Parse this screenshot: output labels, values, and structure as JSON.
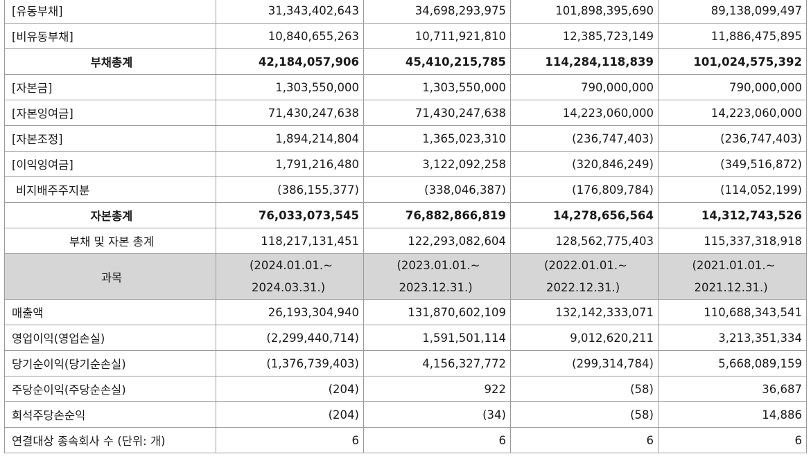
{
  "balance_rows": [
    {
      "label": "[유동부채]",
      "v": [
        "31,343,402,643",
        "34,698,293,975",
        "101,898,395,690",
        "89,138,099,497"
      ]
    },
    {
      "label": "[비유동부채]",
      "v": [
        "10,840,655,263",
        "10,711,921,810",
        "12,385,723,149",
        "11,886,475,895"
      ]
    },
    {
      "label": "부채총계",
      "v": [
        "42,184,057,906",
        "45,410,215,785",
        "114,284,118,839",
        "101,024,575,392"
      ]
    },
    {
      "label": "[자본금]",
      "v": [
        "1,303,550,000",
        "1,303,550,000",
        "790,000,000",
        "790,000,000"
      ]
    },
    {
      "label": "[자본잉여금]",
      "v": [
        "71,430,247,638",
        "71,430,247,638",
        "14,223,060,000",
        "14,223,060,000"
      ]
    },
    {
      "label": "[자본조정]",
      "v": [
        "1,894,214,804",
        "1,365,023,310",
        "(236,747,403)",
        "(236,747,403)"
      ]
    },
    {
      "label": "[이익잉여금]",
      "v": [
        "1,791,216,480",
        "3,122,092,258",
        "(320,846,249)",
        "(349,516,872)"
      ]
    },
    {
      "label": "비지배주주지분",
      "v": [
        "(386,155,377)",
        "(338,046,387)",
        "(176,809,784)",
        "(114,052,199)"
      ]
    },
    {
      "label": "자본총계",
      "v": [
        "76,033,073,545",
        "76,882,866,819",
        "14,278,656,564",
        "14,312,743,526"
      ]
    },
    {
      "label": "부채 및 자본 총계",
      "v": [
        "118,217,131,451",
        "122,293,082,604",
        "128,562,775,403",
        "115,337,318,918"
      ]
    }
  ],
  "header": {
    "label": "과목",
    "periods": [
      {
        "l1": "(2024.01.01.~",
        "l2": "2024.03.31.)"
      },
      {
        "l1": "(2023.01.01.~",
        "l2": "2023.12.31.)"
      },
      {
        "l1": "(2022.01.01.~",
        "l2": "2022.12.31.)"
      },
      {
        "l1": "(2021.01.01.~",
        "l2": "2021.12.31.)"
      }
    ]
  },
  "income_rows": [
    {
      "label": "매출액",
      "v": [
        "26,193,304,940",
        "131,870,602,109",
        "132,142,333,071",
        "110,688,343,541"
      ]
    },
    {
      "label": "영업이익(영업손실)",
      "v": [
        "(2,299,440,714)",
        "1,591,501,114",
        "9,012,620,211",
        "3,213,351,334"
      ]
    },
    {
      "label": "당기순이익(당기순손실)",
      "v": [
        "(1,376,739,403)",
        "4,156,327,772",
        "(299,314,784)",
        "5,668,089,159"
      ]
    },
    {
      "label": "주당순이익(주당순손실)",
      "v": [
        "(204)",
        "922",
        "(58)",
        "36,687"
      ]
    },
    {
      "label": "희석주당손순익",
      "v": [
        "(204)",
        "(34)",
        "(58)",
        "14,886"
      ]
    },
    {
      "label": "연결대상 종속회사 수 (단위: 개)",
      "v": [
        "6",
        "6",
        "6",
        "6"
      ]
    }
  ]
}
